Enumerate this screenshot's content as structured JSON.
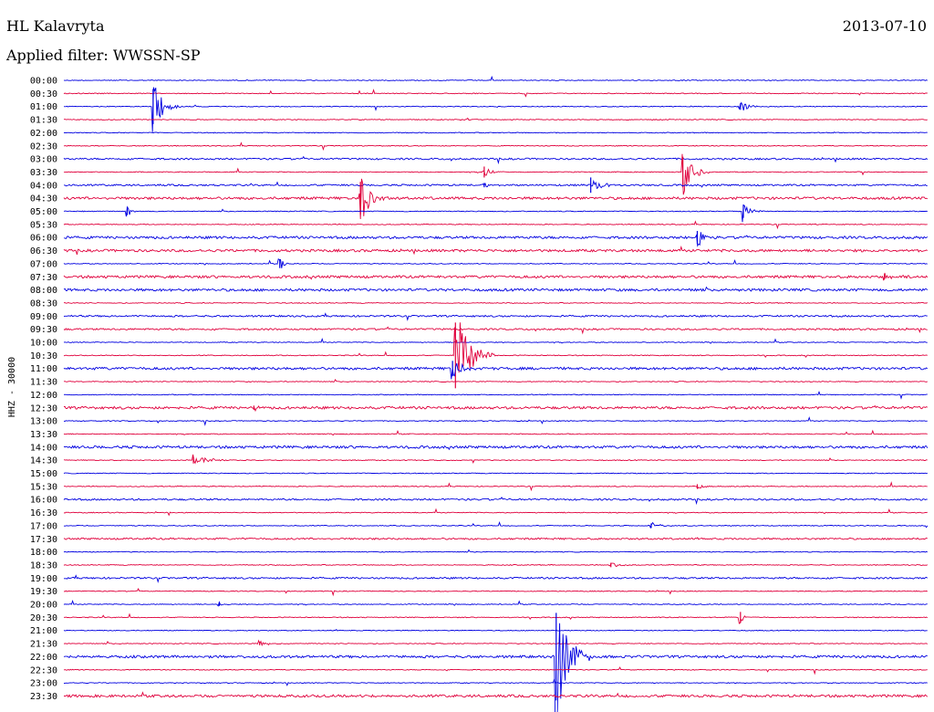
{
  "header": {
    "station": "HL Kalavryta",
    "date": "2013-07-10",
    "filter": "Applied filter: WWSSN-SP"
  },
  "chart_data": {
    "type": "line",
    "channel_label": "HHZ - 30000",
    "colors": {
      "even": "#0000e0",
      "odd": "#e0003c"
    },
    "rows": [
      "00:00",
      "00:30",
      "01:00",
      "01:30",
      "02:00",
      "02:30",
      "03:00",
      "03:30",
      "04:00",
      "04:30",
      "05:00",
      "05:30",
      "06:00",
      "06:30",
      "07:00",
      "07:30",
      "08:00",
      "08:30",
      "09:00",
      "09:30",
      "10:00",
      "10:30",
      "11:00",
      "11:30",
      "12:00",
      "12:30",
      "13:00",
      "13:30",
      "14:00",
      "14:30",
      "15:00",
      "15:30",
      "16:00",
      "16:30",
      "17:00",
      "17:30",
      "18:00",
      "18:30",
      "19:00",
      "19:30",
      "20:00",
      "20:30",
      "21:00",
      "21:30",
      "22:00",
      "22:30",
      "23:00",
      "23:30"
    ],
    "x_range_minutes": [
      0,
      30
    ],
    "noise_level": [
      1,
      1,
      1,
      1,
      1,
      1,
      2,
      1,
      2,
      3,
      1,
      1,
      3,
      3,
      1,
      3,
      3,
      1,
      2,
      2,
      1,
      1,
      3,
      1,
      1,
      3,
      1,
      1,
      3,
      1,
      1,
      1,
      2,
      1,
      1,
      2,
      1,
      1,
      2,
      1,
      1,
      1,
      1,
      1,
      3,
      1,
      1,
      3
    ],
    "events": [
      {
        "row": 2,
        "minute": 3.1,
        "amplitude": 32,
        "duration": 1.0
      },
      {
        "row": 2,
        "minute": 23.5,
        "amplitude": 6,
        "duration": 1.0
      },
      {
        "row": 7,
        "minute": 14.6,
        "amplitude": 10,
        "duration": 0.6
      },
      {
        "row": 7,
        "minute": 21.5,
        "amplitude": 28,
        "duration": 1.0
      },
      {
        "row": 8,
        "minute": 18.3,
        "amplitude": 14,
        "duration": 0.8
      },
      {
        "row": 8,
        "minute": 14.6,
        "amplitude": 4,
        "duration": 0.3
      },
      {
        "row": 9,
        "minute": 10.3,
        "amplitude": 30,
        "duration": 1.0
      },
      {
        "row": 10,
        "minute": 2.2,
        "amplitude": 7,
        "duration": 0.4
      },
      {
        "row": 10,
        "minute": 23.6,
        "amplitude": 12,
        "duration": 0.7
      },
      {
        "row": 12,
        "minute": 22.0,
        "amplitude": 12,
        "duration": 0.7
      },
      {
        "row": 14,
        "minute": 7.5,
        "amplitude": 8,
        "duration": 0.6
      },
      {
        "row": 15,
        "minute": 28.5,
        "amplitude": 5,
        "duration": 0.8
      },
      {
        "row": 21,
        "minute": 13.6,
        "amplitude": 60,
        "duration": 1.4
      },
      {
        "row": 22,
        "minute": 13.5,
        "amplitude": 14,
        "duration": 0.9
      },
      {
        "row": 25,
        "minute": 6.6,
        "amplitude": 4,
        "duration": 0.4
      },
      {
        "row": 29,
        "minute": 4.5,
        "amplitude": 6,
        "duration": 1.8
      },
      {
        "row": 31,
        "minute": 22.0,
        "amplitude": 4,
        "duration": 0.6
      },
      {
        "row": 34,
        "minute": 20.4,
        "amplitude": 4,
        "duration": 1.0
      },
      {
        "row": 37,
        "minute": 19.0,
        "amplitude": 4,
        "duration": 0.8
      },
      {
        "row": 40,
        "minute": 5.4,
        "amplitude": 3,
        "duration": 0.4
      },
      {
        "row": 41,
        "minute": 23.5,
        "amplitude": 10,
        "duration": 0.3
      },
      {
        "row": 43,
        "minute": 6.8,
        "amplitude": 3,
        "duration": 1.0
      },
      {
        "row": 44,
        "minute": 17.1,
        "amplitude": 80,
        "duration": 1.3
      }
    ]
  }
}
